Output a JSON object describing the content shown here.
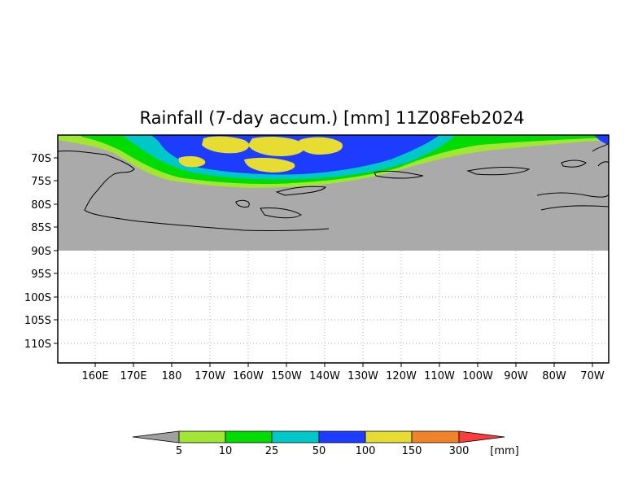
{
  "title": "Rainfall (7-day accum.) [mm] 11Z08Feb2024",
  "map": {
    "lat_labels": [
      "70S",
      "75S",
      "80S",
      "85S",
      "90S",
      "95S",
      "100S",
      "105S",
      "110S"
    ],
    "lon_labels": [
      "160E",
      "170E",
      "180",
      "170W",
      "160W",
      "150W",
      "140W",
      "130W",
      "120W",
      "110W",
      "100W",
      "90W",
      "80W",
      "70W"
    ],
    "land_color": "#aaaaaa",
    "no_data_color": "#ffffff"
  },
  "colorbar": {
    "labels": [
      "5",
      "10",
      "25",
      "50",
      "100",
      "150",
      "300"
    ],
    "unit": "[mm]",
    "colors": [
      "#a0a0a0",
      "#a0e632",
      "#00dc00",
      "#00c8c8",
      "#1e3cff",
      "#e6dc32",
      "#f08228",
      "#fa3c3c"
    ]
  }
}
